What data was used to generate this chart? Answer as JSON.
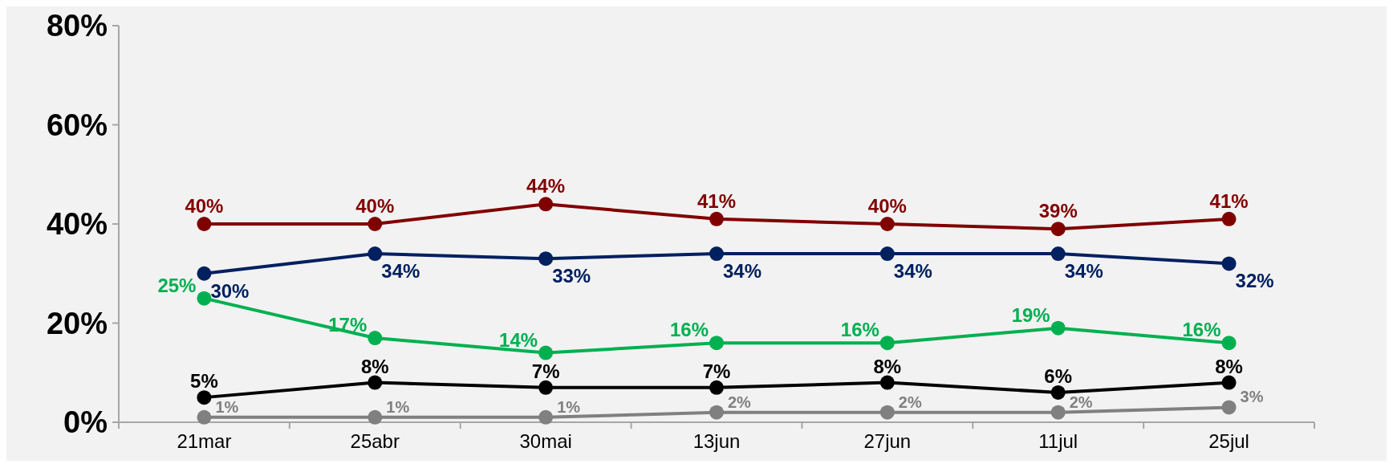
{
  "chart_data": {
    "type": "line",
    "categories": [
      "21mar",
      "25abr",
      "30mai",
      "13jun",
      "27jun",
      "11jul",
      "25jul"
    ],
    "ylim": [
      0,
      80
    ],
    "yticks": [
      {
        "value": 0,
        "label": "0%"
      },
      {
        "value": 20,
        "label": "20%"
      },
      {
        "value": 40,
        "label": "40%"
      },
      {
        "value": 60,
        "label": "60%"
      },
      {
        "value": 80,
        "label": "80%"
      }
    ],
    "marker": "circle",
    "line_style": "solid",
    "grid": false,
    "series": [
      {
        "color": "#800000",
        "values": [
          40,
          40,
          44,
          41,
          40,
          39,
          41
        ],
        "value_labels": [
          "40%",
          "40%",
          "44%",
          "41%",
          "40%",
          "39%",
          "41%"
        ]
      },
      {
        "color": "#002060",
        "values": [
          30,
          34,
          33,
          34,
          34,
          34,
          32
        ],
        "value_labels": [
          "30%",
          "34%",
          "33%",
          "34%",
          "34%",
          "34%",
          "32%"
        ]
      },
      {
        "color": "#00b050",
        "values": [
          25,
          17,
          14,
          16,
          16,
          19,
          16
        ],
        "value_labels": [
          "25%",
          "17%",
          "14%",
          "16%",
          "16%",
          "19%",
          "16%"
        ]
      },
      {
        "color": "#000000",
        "values": [
          5,
          8,
          7,
          7,
          8,
          6,
          8
        ],
        "value_labels": [
          "5%",
          "8%",
          "7%",
          "7%",
          "8%",
          "6%",
          "8%"
        ]
      },
      {
        "color": "#808080",
        "values": [
          1,
          1,
          1,
          2,
          2,
          2,
          3
        ],
        "value_labels": [
          "1%",
          "1%",
          "1%",
          "2%",
          "2%",
          "2%",
          "3%"
        ]
      }
    ]
  }
}
